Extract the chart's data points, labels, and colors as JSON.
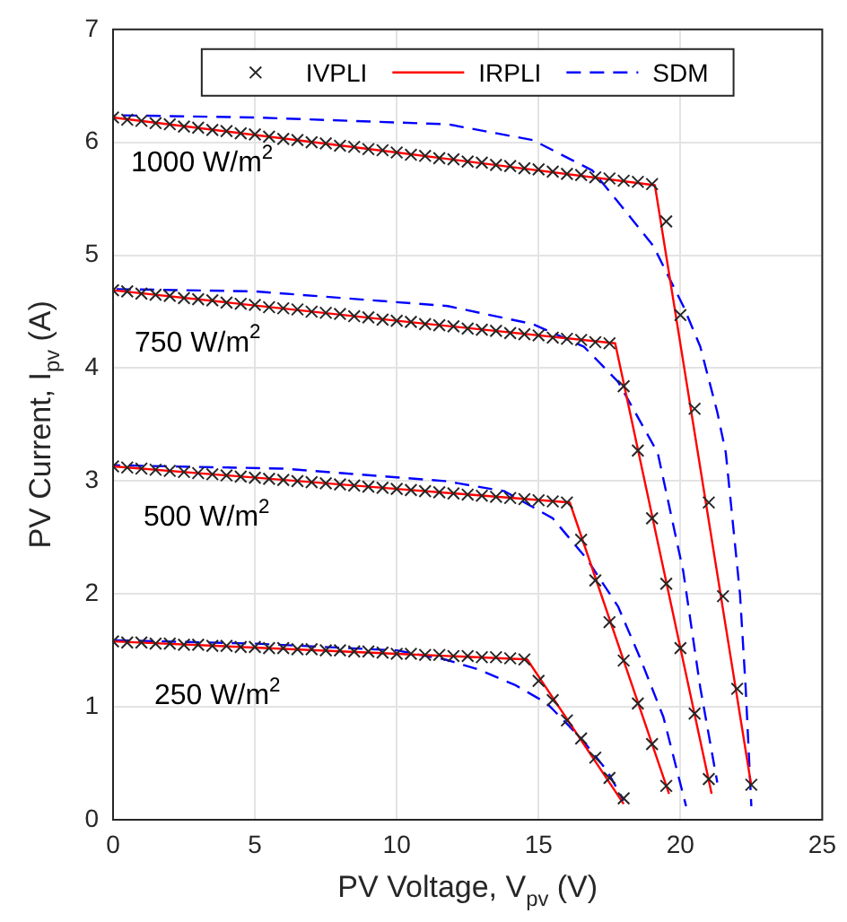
{
  "chart_data": {
    "type": "line",
    "xlabel": "PV Voltage, V$_{pv}$ (V)",
    "ylabel": "PV Current, I$_{pv}$ (A)",
    "xlim": [
      0,
      25
    ],
    "xticks": [
      0,
      5,
      10,
      15,
      20,
      25
    ],
    "ylim": [
      0,
      7
    ],
    "yticks": [
      0,
      1,
      2,
      3,
      4,
      5,
      6,
      7
    ],
    "grid": true,
    "legend": "top",
    "annotations": [
      "1000 W/m$^{2}$",
      "750 W/m$^{2}$",
      "500 W/m$^{2}$",
      "250 W/m$^{2}$"
    ],
    "series": [
      {
        "name": "IVPLI",
        "type": "scatter",
        "marker": "cross",
        "color": "#262626",
        "x": [
          0,
          0.5,
          1,
          1.5,
          2,
          2.5,
          3,
          3.5,
          4,
          4.5,
          5,
          5.5,
          6,
          6.5,
          7,
          7.5,
          8,
          8.5,
          9,
          9.5,
          10,
          10.5,
          11,
          11.5,
          12,
          12.5,
          13,
          13.5,
          14,
          14.5,
          15,
          15.5,
          16,
          16.5,
          17,
          17.5,
          18,
          18.5,
          19,
          19.5,
          20,
          20.5,
          21,
          21.5,
          22,
          22.5
        ],
        "values": [
          6.22,
          6.2,
          6.19,
          6.17,
          6.16,
          6.14,
          6.13,
          6.11,
          6.1,
          6.08,
          6.07,
          6.05,
          6.03,
          6.02,
          6,
          5.99,
          5.97,
          5.96,
          5.94,
          5.93,
          5.91,
          5.89,
          5.88,
          5.86,
          5.85,
          5.83,
          5.82,
          5.8,
          5.79,
          5.77,
          5.76,
          5.74,
          5.72,
          5.71,
          5.69,
          5.68,
          5.66,
          5.65,
          5.63,
          5.3,
          4.47,
          3.64,
          2.81,
          1.98,
          1.16,
          0.31
        ]
      },
      {
        "type": "scatter",
        "marker": "cross",
        "color": "#262626",
        "x": [
          0,
          0.5,
          1,
          1.5,
          2,
          2.5,
          3,
          3.5,
          4,
          4.5,
          5,
          5.5,
          6,
          6.5,
          7,
          7.5,
          8,
          8.5,
          9,
          9.5,
          10,
          10.5,
          11,
          11.5,
          12,
          12.5,
          13,
          13.5,
          14,
          14.5,
          15,
          15.5,
          16,
          16.5,
          17,
          17.5,
          18,
          18.5,
          19,
          19.5,
          20,
          20.5,
          21
        ],
        "values": [
          4.69,
          4.68,
          4.66,
          4.65,
          4.64,
          4.62,
          4.61,
          4.6,
          4.58,
          4.57,
          4.56,
          4.54,
          4.53,
          4.52,
          4.5,
          4.49,
          4.48,
          4.46,
          4.45,
          4.43,
          4.42,
          4.41,
          4.39,
          4.38,
          4.37,
          4.35,
          4.34,
          4.33,
          4.31,
          4.3,
          4.29,
          4.27,
          4.26,
          4.25,
          4.23,
          4.22,
          3.84,
          3.27,
          2.67,
          2.09,
          1.52,
          0.94,
          0.36
        ]
      },
      {
        "type": "scatter",
        "marker": "cross",
        "color": "#262626",
        "x": [
          0,
          0.5,
          1,
          1.5,
          2,
          2.5,
          3,
          3.5,
          4,
          4.5,
          5,
          5.5,
          6,
          6.5,
          7,
          7.5,
          8,
          8.5,
          9,
          9.5,
          10,
          10.5,
          11,
          11.5,
          12,
          12.5,
          13,
          13.5,
          14,
          14.5,
          15,
          15.5,
          16,
          16.5,
          17,
          17.5,
          18,
          18.5,
          19,
          19.5
        ],
        "values": [
          3.13,
          3.12,
          3.11,
          3.1,
          3.09,
          3.08,
          3.07,
          3.06,
          3.05,
          3.04,
          3.03,
          3.02,
          3.01,
          3,
          2.99,
          2.98,
          2.97,
          2.96,
          2.95,
          2.94,
          2.93,
          2.92,
          2.91,
          2.9,
          2.89,
          2.88,
          2.87,
          2.86,
          2.85,
          2.84,
          2.83,
          2.82,
          2.81,
          2.48,
          2.12,
          1.75,
          1.41,
          1.03,
          0.67,
          0.3
        ]
      },
      {
        "type": "scatter",
        "marker": "cross",
        "color": "#262626",
        "x": [
          0,
          0.5,
          1,
          1.5,
          2,
          2.5,
          3,
          3.5,
          4,
          4.5,
          5,
          5.5,
          6,
          6.5,
          7,
          7.5,
          8,
          8.5,
          9,
          9.5,
          10,
          10.5,
          11,
          11.5,
          12,
          12.5,
          13,
          13.5,
          14,
          14.5,
          15,
          15.5,
          16,
          16.5,
          17,
          17.5,
          18
        ],
        "values": [
          1.58,
          1.57,
          1.57,
          1.56,
          1.56,
          1.55,
          1.55,
          1.54,
          1.54,
          1.53,
          1.53,
          1.52,
          1.52,
          1.51,
          1.51,
          1.5,
          1.5,
          1.49,
          1.49,
          1.48,
          1.47,
          1.47,
          1.46,
          1.46,
          1.45,
          1.45,
          1.44,
          1.44,
          1.43,
          1.42,
          1.23,
          1.06,
          0.88,
          0.72,
          0.55,
          0.37,
          0.19
        ]
      },
      {
        "name": "IRPLI",
        "type": "line",
        "color": "#ff0000",
        "x": [
          0,
          10,
          19.1,
          22.5
        ],
        "values": [
          6.22,
          5.91,
          5.62,
          0.3
        ]
      },
      {
        "type": "line",
        "color": "#ff0000",
        "x": [
          0,
          10,
          17.7,
          21.1
        ],
        "values": [
          4.69,
          4.42,
          4.22,
          0.23
        ]
      },
      {
        "type": "line",
        "color": "#ff0000",
        "x": [
          0,
          10,
          16.1,
          19.6
        ],
        "values": [
          3.13,
          2.93,
          2.81,
          0.23
        ]
      },
      {
        "type": "line",
        "color": "#ff0000",
        "x": [
          0,
          10,
          14.6,
          18
        ],
        "values": [
          1.58,
          1.47,
          1.42,
          0.14
        ]
      },
      {
        "name": "SDM",
        "type": "line",
        "line_style": "dashed",
        "color": "#0000ff",
        "x": [
          0,
          5,
          11.8,
          14.8,
          16.9,
          18,
          19.05,
          20.1,
          20.7,
          21.3,
          21.6,
          22.1,
          22.3,
          22.5
        ],
        "values": [
          6.24,
          6.22,
          6.16,
          6.02,
          5.75,
          5.41,
          5.08,
          4.55,
          4.19,
          3.61,
          3.25,
          2,
          1.17,
          0.12
        ]
      },
      {
        "type": "line",
        "line_style": "dashed",
        "color": "#0000ff",
        "x": [
          0,
          5,
          11.8,
          14.8,
          16.6,
          17.8,
          18.6,
          19.2,
          20.1,
          20.7,
          21.3
        ],
        "values": [
          4.7,
          4.68,
          4.55,
          4.39,
          4.19,
          3.88,
          3.52,
          3.25,
          2.2,
          1.17,
          0.33
        ]
      },
      {
        "type": "line",
        "line_style": "dashed",
        "color": "#0000ff",
        "x": [
          0,
          6,
          11.7,
          13.8,
          15.5,
          16.7,
          17.8,
          18.6,
          19.4,
          20.2
        ],
        "values": [
          3.14,
          3.11,
          3,
          2.91,
          2.67,
          2.31,
          1.89,
          1.42,
          0.91,
          0.12
        ]
      },
      {
        "type": "line",
        "line_style": "dashed",
        "color": "#0000ff",
        "x": [
          0,
          5,
          10,
          11.7,
          12.9,
          14.2,
          15.3,
          16.5,
          17.4,
          18
        ],
        "values": [
          1.59,
          1.56,
          1.5,
          1.42,
          1.33,
          1.19,
          1.03,
          0.72,
          0.44,
          0.17
        ]
      }
    ]
  }
}
